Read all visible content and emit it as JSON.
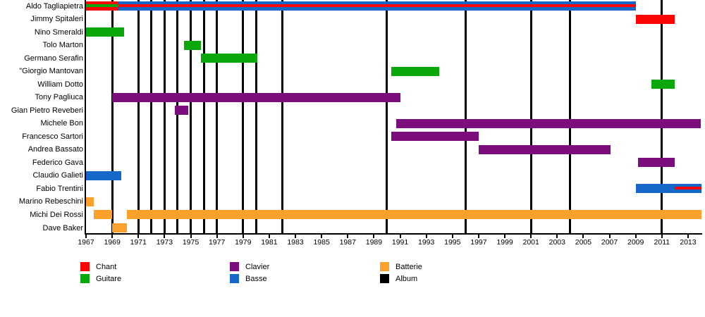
{
  "chart_data": {
    "type": "timeline",
    "x_axis": {
      "start": 1967,
      "end": 2014,
      "tick_years": [
        1967,
        1969,
        1971,
        1973,
        1975,
        1977,
        1979,
        1981,
        1983,
        1985,
        1987,
        1989,
        1991,
        1993,
        1995,
        1997,
        1999,
        2001,
        2003,
        2005,
        2007,
        2009,
        2011,
        2013
      ]
    },
    "album_years": [
      1969,
      1971,
      1972,
      1973,
      1974,
      1975,
      1976,
      1977,
      1979,
      1980,
      1982,
      1990,
      1996,
      2001,
      2004,
      2011
    ],
    "colors": {
      "chant": "#fb0404",
      "guitare": "#0ba80b",
      "clavier": "#7c0d7c",
      "basse": "#1568c8",
      "batterie": "#fba12c",
      "album": "#000000",
      "axis": "#000000"
    },
    "legend": [
      {
        "label": "Chant",
        "role": "chant"
      },
      {
        "label": "Guitare",
        "role": "guitare"
      },
      {
        "label": "Clavier",
        "role": "clavier"
      },
      {
        "label": "Basse",
        "role": "basse"
      },
      {
        "label": "Batterie",
        "role": "batterie"
      },
      {
        "label": "Album",
        "role": "album"
      }
    ],
    "members": [
      {
        "name": "Aldo Tagliapietra",
        "bars": [
          {
            "start": 1967,
            "end": 1969.5,
            "role": "chant",
            "stripe": {
              "role": "guitare",
              "start": 1967,
              "end": 1969.5
            }
          },
          {
            "start": 1969.5,
            "end": 2009,
            "role": "basse",
            "stripe": {
              "role": "chant",
              "start": 1969.5,
              "end": 2009
            }
          }
        ]
      },
      {
        "name": "Jimmy Spitaleri",
        "bars": [
          {
            "start": 2009,
            "end": 2012,
            "role": "chant"
          }
        ]
      },
      {
        "name": "Nino Smeraldi",
        "bars": [
          {
            "start": 1967,
            "end": 1969.9,
            "role": "guitare"
          }
        ]
      },
      {
        "name": "Tolo Marton",
        "bars": [
          {
            "start": 1974.5,
            "end": 1975.8,
            "role": "guitare"
          }
        ]
      },
      {
        "name": "Germano Serafin",
        "bars": [
          {
            "start": 1975.8,
            "end": 1980.1,
            "role": "guitare"
          }
        ]
      },
      {
        "name": "\"Giorgio Mantovan",
        "bars": [
          {
            "start": 1990.3,
            "end": 1994,
            "role": "guitare"
          }
        ]
      },
      {
        "name": "William Dotto",
        "bars": [
          {
            "start": 2010.2,
            "end": 2012,
            "role": "guitare"
          }
        ]
      },
      {
        "name": "Tony Pagliuca",
        "bars": [
          {
            "start": 1969,
            "end": 1991,
            "role": "clavier"
          }
        ]
      },
      {
        "name": "Gian Pietro Reveberi",
        "bars": [
          {
            "start": 1973.8,
            "end": 1974.8,
            "role": "clavier"
          }
        ]
      },
      {
        "name": "Michele Bon",
        "bars": [
          {
            "start": 1990.7,
            "end": 2014,
            "role": "clavier"
          }
        ]
      },
      {
        "name": "Francesco Sartori",
        "bars": [
          {
            "start": 1990.3,
            "end": 1997,
            "role": "clavier"
          }
        ]
      },
      {
        "name": "Andrea Bassato",
        "bars": [
          {
            "start": 1997,
            "end": 2007.1,
            "role": "clavier"
          }
        ]
      },
      {
        "name": "Federico Gava",
        "bars": [
          {
            "start": 2009.2,
            "end": 2012,
            "role": "clavier"
          }
        ]
      },
      {
        "name": "Claudio Galieti",
        "bars": [
          {
            "start": 1967,
            "end": 1969.7,
            "role": "basse"
          }
        ]
      },
      {
        "name": "Fabio Trentini",
        "bars": [
          {
            "start": 2009,
            "end": 2014,
            "role": "basse",
            "stripe": {
              "role": "chant",
              "start": 2012,
              "end": 2014
            }
          }
        ]
      },
      {
        "name": "Marino Rebeschini",
        "bars": [
          {
            "start": 1967,
            "end": 1967.6,
            "role": "batterie"
          }
        ]
      },
      {
        "name": "Michi Dei Rossi",
        "bars": [
          {
            "start": 1967.6,
            "end": 1969,
            "role": "batterie"
          },
          {
            "start": 1970.1,
            "end": 2014,
            "role": "batterie"
          }
        ]
      },
      {
        "name": "Dave Baker",
        "bars": [
          {
            "start": 1969,
            "end": 1970.1,
            "role": "batterie"
          }
        ]
      }
    ]
  }
}
